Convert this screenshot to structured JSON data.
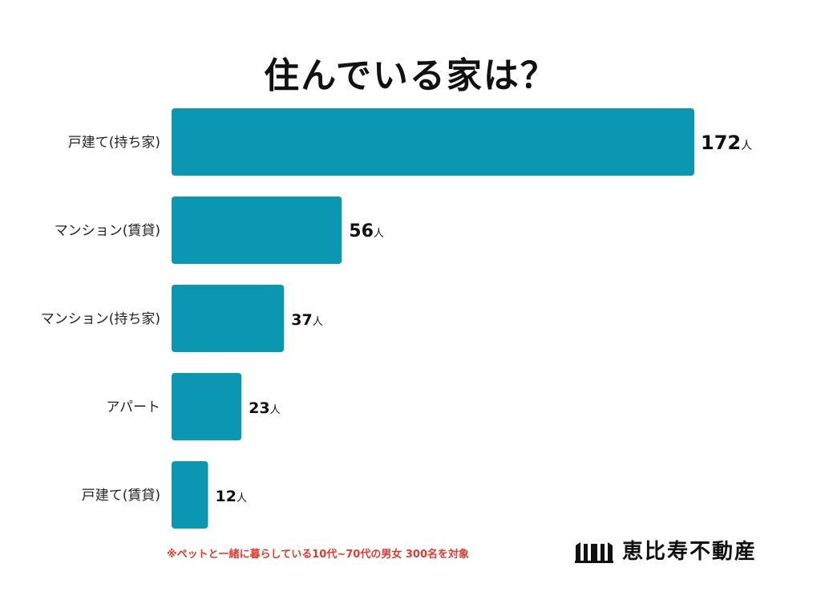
{
  "chart_data": {
    "type": "bar",
    "orientation": "horizontal",
    "title": "住んでいる家は？",
    "categories": [
      "戸建て(持ち家)",
      "マンション(賃貸)",
      "マンション(持ち家)",
      "アパート",
      "戸建て(賃貸)"
    ],
    "values": [
      172,
      56,
      37,
      23,
      12
    ],
    "value_unit": "人",
    "bar_color": "#0b97b1",
    "grid": false,
    "legend": "none"
  },
  "footnote": "※ペットと一緒に暮らしている10代~70代の男女 300名を対象",
  "logo": {
    "text": "恵比寿不動産",
    "icon": "building-logo-icon"
  }
}
